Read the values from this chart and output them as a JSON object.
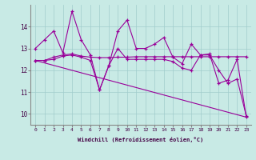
{
  "background_color": "#c8eae5",
  "grid_color": "#a0cccc",
  "line_color": "#990099",
  "xlabel": "Windchill (Refroidissement éolien,°C)",
  "xlim": [
    -0.5,
    23.5
  ],
  "ylim": [
    9.5,
    15.0
  ],
  "yticks": [
    10,
    11,
    12,
    13,
    14
  ],
  "xticks": [
    0,
    1,
    2,
    3,
    4,
    5,
    6,
    7,
    8,
    9,
    10,
    11,
    12,
    13,
    14,
    15,
    16,
    17,
    18,
    19,
    20,
    21,
    22,
    23
  ],
  "series": [
    {
      "x": [
        0,
        1,
        2,
        3,
        4,
        5,
        6,
        7,
        8,
        9,
        10,
        11,
        12,
        13,
        14,
        15,
        16,
        17,
        18,
        19,
        20,
        21,
        22,
        23
      ],
      "y": [
        13.0,
        13.4,
        13.8,
        12.8,
        14.7,
        13.4,
        12.7,
        11.1,
        12.2,
        13.8,
        14.3,
        13.0,
        13.0,
        13.2,
        13.5,
        12.6,
        12.3,
        13.2,
        12.7,
        12.75,
        11.4,
        11.55,
        12.5,
        9.85
      ],
      "marker": "+"
    },
    {
      "x": [
        0,
        1,
        2,
        3,
        4,
        5,
        6,
        7,
        8,
        9,
        10,
        11,
        12,
        13,
        14,
        15,
        16,
        17,
        18,
        19,
        20,
        21,
        22,
        23
      ],
      "y": [
        12.45,
        12.45,
        12.6,
        12.7,
        12.75,
        12.65,
        12.6,
        12.58,
        12.58,
        12.6,
        12.6,
        12.62,
        12.62,
        12.62,
        12.62,
        12.62,
        12.62,
        12.62,
        12.62,
        12.62,
        12.62,
        12.62,
        12.62,
        12.62
      ],
      "marker": "+"
    },
    {
      "x": [
        0,
        1,
        2,
        3,
        4,
        5,
        6,
        7,
        8,
        9,
        10,
        11,
        12,
        13,
        14,
        15,
        16,
        17,
        18,
        19,
        20,
        21,
        22,
        23
      ],
      "y": [
        12.45,
        12.45,
        12.5,
        12.65,
        12.7,
        12.6,
        12.45,
        11.1,
        12.2,
        13.0,
        12.5,
        12.5,
        12.5,
        12.5,
        12.5,
        12.4,
        12.1,
        12.0,
        12.7,
        12.7,
        12.0,
        11.4,
        11.6,
        9.9
      ],
      "marker": "+"
    },
    {
      "x": [
        0,
        23
      ],
      "y": [
        12.45,
        9.85
      ],
      "marker": null
    }
  ]
}
